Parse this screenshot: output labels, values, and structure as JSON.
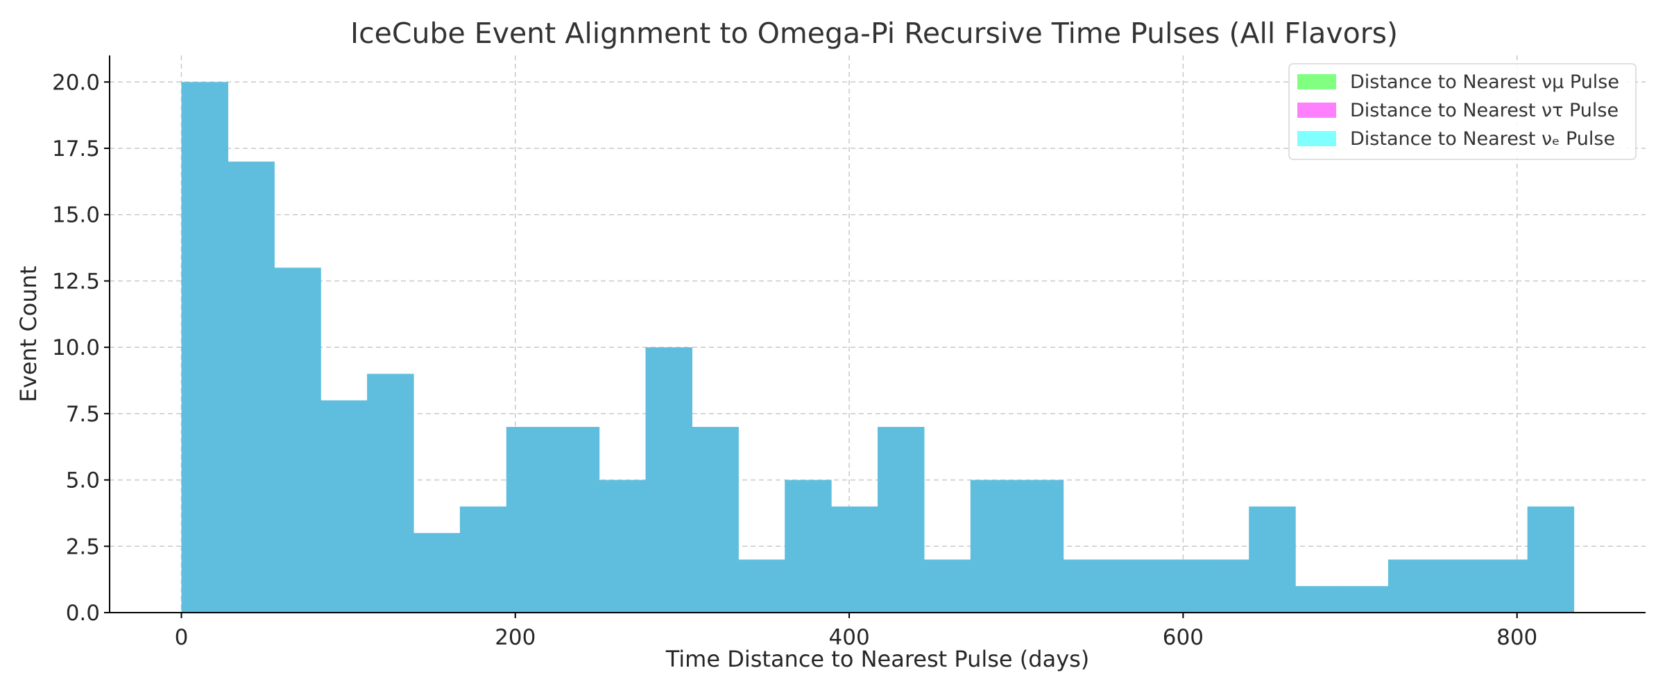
{
  "chart_data": {
    "type": "bar",
    "title": "IceCube Event Alignment to Omega-Pi Recursive Time Pulses (All Flavors)",
    "xlabel": "Time Distance to Nearest Pulse (days)",
    "ylabel": "Event Count",
    "xlim": [
      -43,
      877
    ],
    "ylim": [
      0,
      21
    ],
    "xticks": [
      0,
      200,
      400,
      600,
      800
    ],
    "yticks": [
      0.0,
      2.5,
      5.0,
      7.5,
      10.0,
      12.5,
      15.0,
      17.5,
      20.0
    ],
    "xtick_labels": [
      "0",
      "200",
      "400",
      "600",
      "800"
    ],
    "ytick_labels": [
      "0.0",
      "2.5",
      "5.0",
      "7.5",
      "10.0",
      "12.5",
      "15.0",
      "17.5",
      "20.0"
    ],
    "grid": true,
    "legend_position": "top-right",
    "bin_width": 27.8,
    "bins": [
      {
        "x0": 0.0,
        "count": 20
      },
      {
        "x0": 27.8,
        "count": 17
      },
      {
        "x0": 55.6,
        "count": 13
      },
      {
        "x0": 83.4,
        "count": 8
      },
      {
        "x0": 111.2,
        "count": 9
      },
      {
        "x0": 139.0,
        "count": 3
      },
      {
        "x0": 166.8,
        "count": 4
      },
      {
        "x0": 194.6,
        "count": 7
      },
      {
        "x0": 222.4,
        "count": 7
      },
      {
        "x0": 250.2,
        "count": 5
      },
      {
        "x0": 278.0,
        "count": 10
      },
      {
        "x0": 305.8,
        "count": 7
      },
      {
        "x0": 333.6,
        "count": 2
      },
      {
        "x0": 361.4,
        "count": 5
      },
      {
        "x0": 389.2,
        "count": 4
      },
      {
        "x0": 417.0,
        "count": 7
      },
      {
        "x0": 444.8,
        "count": 2
      },
      {
        "x0": 472.6,
        "count": 5
      },
      {
        "x0": 500.4,
        "count": 5
      },
      {
        "x0": 528.2,
        "count": 2
      },
      {
        "x0": 556.0,
        "count": 2
      },
      {
        "x0": 583.8,
        "count": 2
      },
      {
        "x0": 611.6,
        "count": 2
      },
      {
        "x0": 639.4,
        "count": 4
      },
      {
        "x0": 667.2,
        "count": 1
      },
      {
        "x0": 695.0,
        "count": 1
      },
      {
        "x0": 722.8,
        "count": 2
      },
      {
        "x0": 750.6,
        "count": 2
      },
      {
        "x0": 778.4,
        "count": 2
      },
      {
        "x0": 806.2,
        "count": 4
      }
    ],
    "bar_color": "#5fbedd",
    "series": [
      {
        "name": "Distance to Nearest νμ Pulse",
        "color": "#80ff80"
      },
      {
        "name": "Distance to Nearest ντ Pulse",
        "color": "#ff80ff"
      },
      {
        "name": "Distance to Nearest νₑ Pulse",
        "color": "#80ffff"
      }
    ]
  }
}
